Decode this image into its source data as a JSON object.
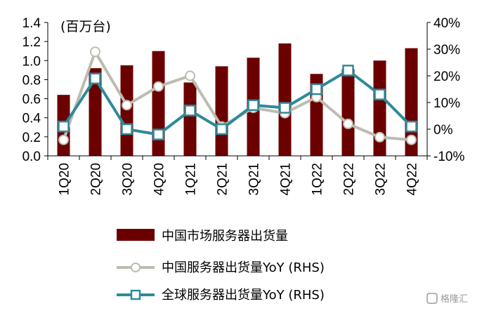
{
  "chart_data": {
    "type": "bar",
    "unit_label": "(百万台)",
    "categories": [
      "1Q20",
      "2Q20",
      "3Q20",
      "4Q20",
      "1Q21",
      "2Q21",
      "3Q21",
      "4Q21",
      "1Q22",
      "2Q22",
      "3Q22",
      "4Q22"
    ],
    "y_left": {
      "ylim": [
        0.0,
        1.4
      ],
      "ticks": [
        "0.0",
        "0.2",
        "0.4",
        "0.6",
        "0.8",
        "1.0",
        "1.2",
        "1.4"
      ]
    },
    "y_right": {
      "ylim": [
        -10,
        40
      ],
      "ticks": [
        "-10%",
        "0%",
        "10%",
        "20%",
        "30%",
        "40%"
      ]
    },
    "series": [
      {
        "name": "中国市场服务器出货量",
        "type": "bar",
        "axis": "left",
        "color": "#6b0000",
        "values": [
          0.64,
          0.92,
          0.95,
          1.1,
          0.77,
          0.94,
          1.03,
          1.18,
          0.86,
          0.91,
          1.0,
          1.13
        ]
      },
      {
        "name": "中国服务器出货量YoY (RHS)",
        "type": "line",
        "axis": "right",
        "color": "#bdbcb0",
        "marker": "circle",
        "values": [
          -4,
          29,
          9,
          16,
          20,
          1,
          8,
          6,
          12,
          2,
          -3,
          -4
        ]
      },
      {
        "name": "全球服务器出货量YoY (RHS)",
        "type": "line",
        "axis": "right",
        "color": "#2e8a9a",
        "marker": "square",
        "values": [
          1,
          19,
          0,
          -2,
          7,
          0,
          9,
          8,
          15,
          22,
          13,
          1
        ]
      }
    ],
    "legend_position": "bottom",
    "grid": false
  },
  "watermark": "格隆汇"
}
